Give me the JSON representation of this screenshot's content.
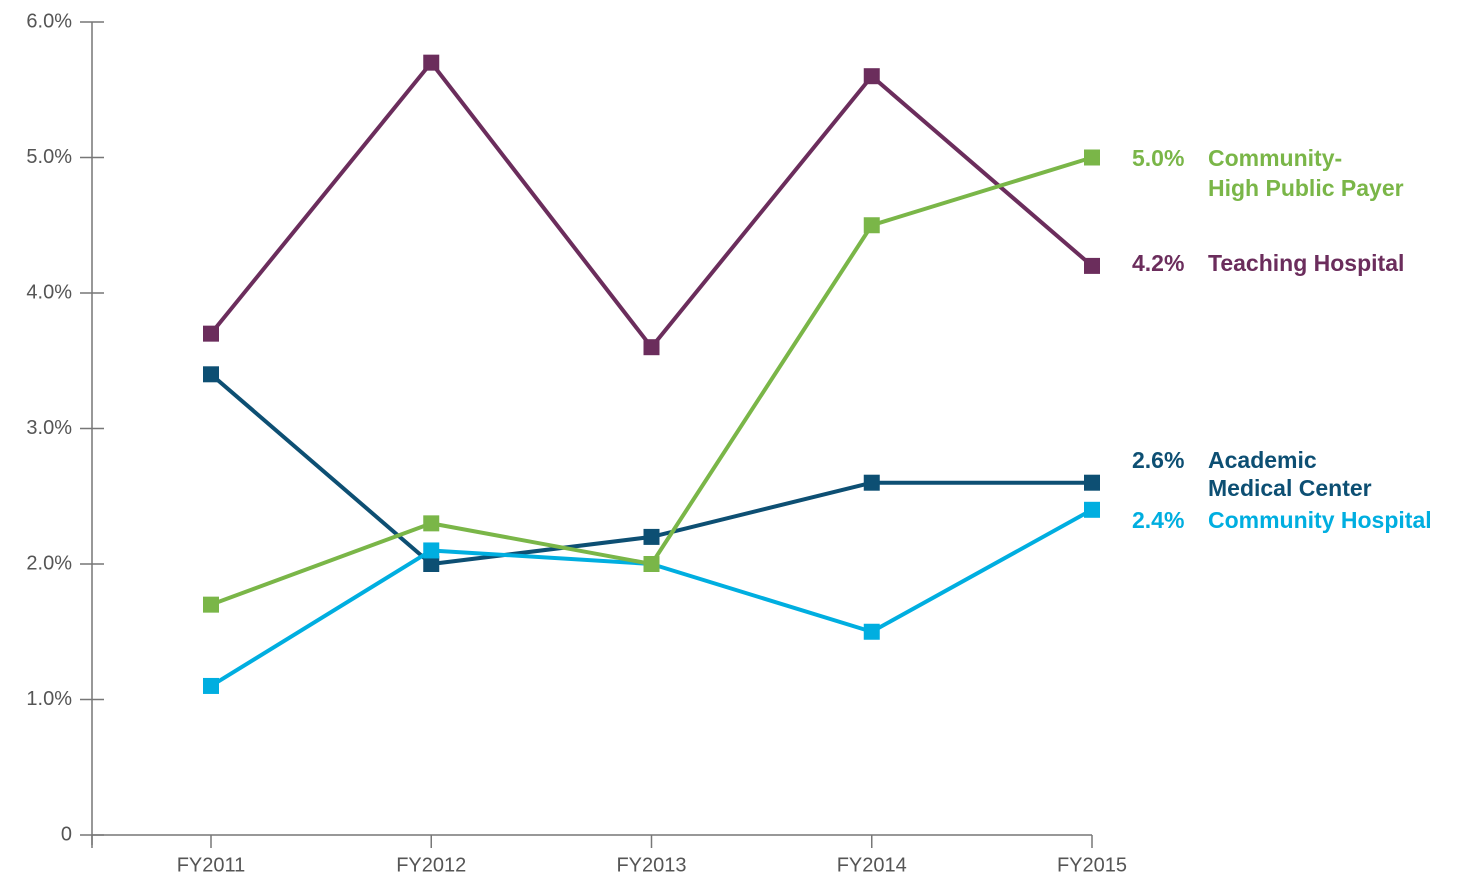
{
  "chart_data": {
    "type": "line",
    "categories": [
      "FY2011",
      "FY2012",
      "FY2013",
      "FY2014",
      "FY2015"
    ],
    "ylim": [
      0,
      6
    ],
    "yticks": [
      0,
      {
        "value": 1,
        "label": "1.0%"
      },
      {
        "value": 2,
        "label": "2.0%"
      },
      {
        "value": 3,
        "label": "3.0%"
      },
      {
        "value": 4,
        "label": "4.0%"
      },
      {
        "value": 5,
        "label": "5.0%"
      },
      {
        "value": 6,
        "label": "6.0%"
      }
    ],
    "series": [
      {
        "name": [
          "Teaching Hospital"
        ],
        "color": "#6b2d5c",
        "values": [
          3.7,
          5.7,
          3.6,
          5.6,
          4.2
        ],
        "value_labels": [
          null,
          null,
          null,
          null,
          "4.2%"
        ]
      },
      {
        "name": [
          "Academic",
          "Medical Center"
        ],
        "color": "#0d4f73",
        "values": [
          3.4,
          2.0,
          2.2,
          2.6,
          2.6
        ],
        "value_labels": [
          null,
          null,
          null,
          null,
          "2.6%"
        ]
      },
      {
        "name": [
          "Community Hospital"
        ],
        "color": "#00aee0",
        "values": [
          1.1,
          2.1,
          2.0,
          1.5,
          2.4
        ],
        "value_labels": [
          null,
          null,
          null,
          null,
          "2.4%"
        ]
      },
      {
        "name": [
          "Community-",
          "High Public Payer"
        ],
        "color": "#7ab648",
        "values": [
          1.7,
          2.3,
          2.0,
          4.5,
          5.0
        ],
        "value_labels": [
          null,
          null,
          null,
          null,
          "5.0%"
        ]
      }
    ]
  }
}
